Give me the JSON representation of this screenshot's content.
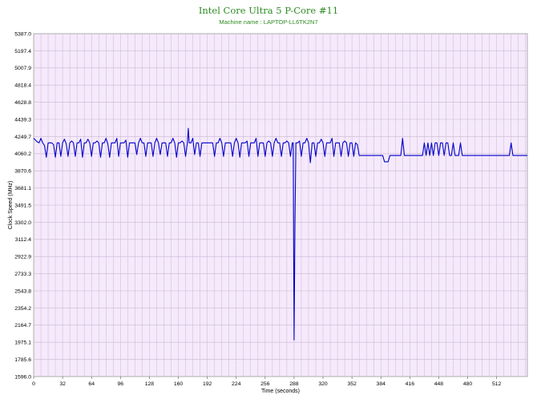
{
  "chart_data": {
    "type": "line",
    "title": "Intel Core Ultra 5 P-Core #11",
    "subtitle": "Machine name : LAPTOP-LL6TK2N7",
    "xlabel": "Time (seconds)",
    "ylabel": "Clock Speed (MHz)",
    "xlim": [
      0,
      546
    ],
    "ylim": [
      1596.0,
      5387.0
    ],
    "x_ticks": [
      "0",
      "32",
      "64",
      "96",
      "128",
      "160",
      "192",
      "224",
      "256",
      "288",
      "320",
      "352",
      "384",
      "416",
      "448",
      "480",
      "512"
    ],
    "y_ticks": [
      "5387.0",
      "5197.4",
      "5007.9",
      "4818.4",
      "4628.8",
      "4439.3",
      "4249.7",
      "4060.2",
      "3870.6",
      "3681.1",
      "3491.5",
      "3302.0",
      "3112.4",
      "2922.9",
      "2733.3",
      "2543.8",
      "2354.2",
      "2164.7",
      "1975.1",
      "1785.6",
      "1596.0"
    ],
    "grid": true,
    "colors": {
      "title": "#2e8b22",
      "subtitle": "#2e8b22",
      "plot_background": "#f5e9fb",
      "grid": "#c9b8d3",
      "line": "#0000cc"
    },
    "series": [
      {
        "values": [
          [
            0,
            4230
          ],
          [
            4,
            4190
          ],
          [
            6,
            4180
          ],
          [
            8,
            4230
          ],
          [
            10,
            4180
          ],
          [
            12,
            4150
          ],
          [
            14,
            4020
          ],
          [
            16,
            4180
          ],
          [
            18,
            4180
          ],
          [
            20,
            4180
          ],
          [
            22,
            4160
          ],
          [
            24,
            4020
          ],
          [
            26,
            4180
          ],
          [
            28,
            4180
          ],
          [
            30,
            4030
          ],
          [
            32,
            4180
          ],
          [
            34,
            4220
          ],
          [
            36,
            4170
          ],
          [
            38,
            4030
          ],
          [
            40,
            4180
          ],
          [
            42,
            4200
          ],
          [
            44,
            4180
          ],
          [
            46,
            4030
          ],
          [
            48,
            4180
          ],
          [
            50,
            4180
          ],
          [
            52,
            4220
          ],
          [
            54,
            4020
          ],
          [
            56,
            4180
          ],
          [
            58,
            4180
          ],
          [
            60,
            4220
          ],
          [
            62,
            4180
          ],
          [
            64,
            4030
          ],
          [
            66,
            4180
          ],
          [
            68,
            4180
          ],
          [
            70,
            4200
          ],
          [
            72,
            4180
          ],
          [
            74,
            4020
          ],
          [
            76,
            4180
          ],
          [
            78,
            4180
          ],
          [
            80,
            4230
          ],
          [
            82,
            4170
          ],
          [
            84,
            4020
          ],
          [
            86,
            4180
          ],
          [
            88,
            4180
          ],
          [
            90,
            4180
          ],
          [
            92,
            4230
          ],
          [
            94,
            4030
          ],
          [
            96,
            4180
          ],
          [
            98,
            4180
          ],
          [
            100,
            4180
          ],
          [
            102,
            4210
          ],
          [
            104,
            4020
          ],
          [
            106,
            4180
          ],
          [
            108,
            4180
          ],
          [
            110,
            4180
          ],
          [
            112,
            4180
          ],
          [
            114,
            4050
          ],
          [
            116,
            4180
          ],
          [
            118,
            4230
          ],
          [
            120,
            4180
          ],
          [
            122,
            4180
          ],
          [
            124,
            4030
          ],
          [
            126,
            4180
          ],
          [
            128,
            4180
          ],
          [
            130,
            4180
          ],
          [
            132,
            4030
          ],
          [
            134,
            4180
          ],
          [
            136,
            4230
          ],
          [
            138,
            4180
          ],
          [
            140,
            4050
          ],
          [
            142,
            4180
          ],
          [
            144,
            4180
          ],
          [
            146,
            4180
          ],
          [
            148,
            4030
          ],
          [
            150,
            4180
          ],
          [
            152,
            4180
          ],
          [
            154,
            4230
          ],
          [
            156,
            4180
          ],
          [
            158,
            4020
          ],
          [
            160,
            4180
          ],
          [
            162,
            4180
          ],
          [
            164,
            4200
          ],
          [
            166,
            4180
          ],
          [
            168,
            4030
          ],
          [
            170,
            4180
          ],
          [
            171,
            4340
          ],
          [
            172,
            4180
          ],
          [
            174,
            4180
          ],
          [
            176,
            4230
          ],
          [
            178,
            4050
          ],
          [
            180,
            4180
          ],
          [
            182,
            4180
          ],
          [
            184,
            4030
          ],
          [
            186,
            4180
          ],
          [
            188,
            4180
          ],
          [
            190,
            4180
          ],
          [
            192,
            4180
          ],
          [
            194,
            4180
          ],
          [
            196,
            4180
          ],
          [
            198,
            4180
          ],
          [
            200,
            4030
          ],
          [
            202,
            4180
          ],
          [
            204,
            4180
          ],
          [
            206,
            4230
          ],
          [
            208,
            4180
          ],
          [
            210,
            4030
          ],
          [
            212,
            4180
          ],
          [
            214,
            4180
          ],
          [
            216,
            4180
          ],
          [
            218,
            4180
          ],
          [
            220,
            4030
          ],
          [
            222,
            4180
          ],
          [
            224,
            4230
          ],
          [
            226,
            4180
          ],
          [
            228,
            4020
          ],
          [
            230,
            4180
          ],
          [
            232,
            4180
          ],
          [
            234,
            4180
          ],
          [
            236,
            4200
          ],
          [
            238,
            4030
          ],
          [
            240,
            4180
          ],
          [
            242,
            4180
          ],
          [
            244,
            4180
          ],
          [
            246,
            4230
          ],
          [
            248,
            4030
          ],
          [
            250,
            4180
          ],
          [
            252,
            4180
          ],
          [
            254,
            4180
          ],
          [
            256,
            4030
          ],
          [
            258,
            4180
          ],
          [
            260,
            4200
          ],
          [
            262,
            4180
          ],
          [
            264,
            4030
          ],
          [
            266,
            4180
          ],
          [
            268,
            4230
          ],
          [
            270,
            4180
          ],
          [
            272,
            4180
          ],
          [
            274,
            4030
          ],
          [
            276,
            4180
          ],
          [
            278,
            4180
          ],
          [
            280,
            4200
          ],
          [
            282,
            4180
          ],
          [
            284,
            4030
          ],
          [
            286,
            4180
          ],
          [
            287,
            4180
          ],
          [
            288,
            2000
          ],
          [
            289,
            3300
          ],
          [
            290,
            4180
          ],
          [
            292,
            4180
          ],
          [
            294,
            4200
          ],
          [
            296,
            4030
          ],
          [
            298,
            4180
          ],
          [
            300,
            4180
          ],
          [
            302,
            4230
          ],
          [
            304,
            4180
          ],
          [
            306,
            3960
          ],
          [
            308,
            4180
          ],
          [
            310,
            4180
          ],
          [
            312,
            4030
          ],
          [
            314,
            4180
          ],
          [
            316,
            4180
          ],
          [
            318,
            4220
          ],
          [
            320,
            4180
          ],
          [
            322,
            4030
          ],
          [
            324,
            4180
          ],
          [
            326,
            4180
          ],
          [
            328,
            4180
          ],
          [
            330,
            4230
          ],
          [
            332,
            4030
          ],
          [
            334,
            4180
          ],
          [
            336,
            4180
          ],
          [
            338,
            4180
          ],
          [
            340,
            4030
          ],
          [
            342,
            4180
          ],
          [
            344,
            4200
          ],
          [
            346,
            4180
          ],
          [
            348,
            4030
          ],
          [
            350,
            4180
          ],
          [
            352,
            4180
          ],
          [
            354,
            4030
          ],
          [
            356,
            4180
          ],
          [
            358,
            4160
          ],
          [
            360,
            4040
          ],
          [
            362,
            4040
          ],
          [
            364,
            4040
          ],
          [
            366,
            4040
          ],
          [
            368,
            4040
          ],
          [
            370,
            4040
          ],
          [
            372,
            4040
          ],
          [
            374,
            4040
          ],
          [
            376,
            4040
          ],
          [
            378,
            4040
          ],
          [
            380,
            4040
          ],
          [
            382,
            4040
          ],
          [
            384,
            4040
          ],
          [
            386,
            4040
          ],
          [
            388,
            3970
          ],
          [
            390,
            3970
          ],
          [
            392,
            3970
          ],
          [
            394,
            4040
          ],
          [
            396,
            4040
          ],
          [
            398,
            4040
          ],
          [
            400,
            4040
          ],
          [
            402,
            4040
          ],
          [
            404,
            4040
          ],
          [
            406,
            4040
          ],
          [
            408,
            4230
          ],
          [
            410,
            4040
          ],
          [
            412,
            4040
          ],
          [
            414,
            4040
          ],
          [
            416,
            4040
          ],
          [
            418,
            4040
          ],
          [
            420,
            4040
          ],
          [
            422,
            4040
          ],
          [
            424,
            4040
          ],
          [
            426,
            4040
          ],
          [
            428,
            4040
          ],
          [
            430,
            4040
          ],
          [
            432,
            4180
          ],
          [
            434,
            4040
          ],
          [
            436,
            4180
          ],
          [
            438,
            4040
          ],
          [
            440,
            4180
          ],
          [
            442,
            4040
          ],
          [
            444,
            4180
          ],
          [
            446,
            4180
          ],
          [
            448,
            4040
          ],
          [
            450,
            4180
          ],
          [
            452,
            4180
          ],
          [
            454,
            4040
          ],
          [
            456,
            4180
          ],
          [
            458,
            4180
          ],
          [
            460,
            4040
          ],
          [
            462,
            4040
          ],
          [
            464,
            4180
          ],
          [
            466,
            4040
          ],
          [
            468,
            4040
          ],
          [
            470,
            4040
          ],
          [
            472,
            4180
          ],
          [
            474,
            4040
          ],
          [
            476,
            4040
          ],
          [
            478,
            4040
          ],
          [
            480,
            4040
          ],
          [
            482,
            4040
          ],
          [
            484,
            4040
          ],
          [
            486,
            4040
          ],
          [
            488,
            4040
          ],
          [
            490,
            4040
          ],
          [
            492,
            4040
          ],
          [
            494,
            4040
          ],
          [
            496,
            4040
          ],
          [
            498,
            4040
          ],
          [
            500,
            4040
          ],
          [
            502,
            4040
          ],
          [
            504,
            4040
          ],
          [
            506,
            4040
          ],
          [
            508,
            4040
          ],
          [
            510,
            4040
          ],
          [
            512,
            4040
          ],
          [
            514,
            4040
          ],
          [
            516,
            4040
          ],
          [
            518,
            4040
          ],
          [
            520,
            4040
          ],
          [
            522,
            4040
          ],
          [
            524,
            4040
          ],
          [
            526,
            4040
          ],
          [
            528,
            4180
          ],
          [
            530,
            4040
          ],
          [
            532,
            4040
          ],
          [
            534,
            4040
          ],
          [
            536,
            4040
          ],
          [
            538,
            4040
          ],
          [
            540,
            4040
          ],
          [
            542,
            4040
          ],
          [
            544,
            4040
          ],
          [
            546,
            4040
          ]
        ]
      }
    ]
  }
}
